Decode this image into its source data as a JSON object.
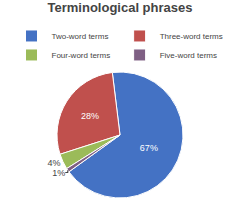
{
  "chart_data": {
    "type": "pie",
    "title": "Terminological phrases",
    "categories": [
      "Two-word terms",
      "Three-word terms",
      "Four-word terms",
      "Five-word terms"
    ],
    "values": [
      67,
      28,
      4,
      1
    ],
    "value_labels": [
      "67%",
      "28%",
      "4%",
      "1%"
    ],
    "colors": [
      "#4472C4",
      "#C0504D",
      "#9BBB59",
      "#7F6084"
    ],
    "data_labels": true,
    "legend": "top"
  }
}
